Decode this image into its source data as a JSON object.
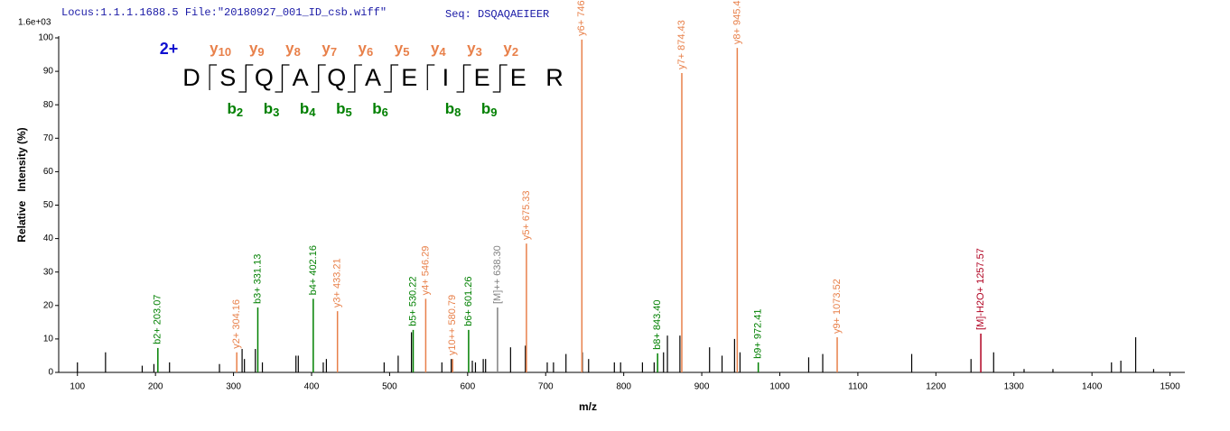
{
  "chart_data": {
    "type": "spectrum",
    "title": "Locus:1.1.1.1688.5 File:\"20180927_001_ID_csb.wiff\"",
    "subtitle": "Seq: DSQAQAEIEER",
    "y_scale_label": "1.6e+03",
    "x_label": "m/z",
    "y_label": "Relative   Intensity (%)",
    "xlim": [
      76,
      1519
    ],
    "ylim": [
      0,
      100
    ],
    "xticks": [
      100,
      200,
      300,
      400,
      500,
      600,
      700,
      800,
      900,
      1000,
      1100,
      1200,
      1300,
      1400,
      1500
    ],
    "yticks": [
      0,
      10,
      20,
      30,
      40,
      50,
      60,
      70,
      80,
      90,
      100
    ],
    "series": [
      {
        "color": "#000000",
        "x": [
          100,
          136,
          183,
          198,
          218,
          282,
          311,
          314,
          328,
          337,
          380,
          383,
          415,
          419,
          493,
          511,
          528,
          567,
          579,
          606,
          610,
          620,
          623,
          655,
          674,
          702,
          710,
          726,
          747,
          755,
          788,
          796,
          824,
          839,
          851,
          856,
          872,
          910,
          926,
          942,
          949,
          1037,
          1055,
          1169,
          1245,
          1274,
          1313,
          1350,
          1425,
          1437,
          1456,
          1479
        ],
        "values": [
          3,
          6,
          2,
          2.5,
          3,
          2.5,
          7,
          4,
          7,
          3,
          5,
          5,
          3,
          4,
          3,
          5,
          12,
          3,
          4,
          3.5,
          3,
          4,
          4,
          7.5,
          8,
          3,
          3,
          5.5,
          6,
          4,
          3,
          3,
          3,
          3,
          6,
          11,
          11,
          7.5,
          5,
          10,
          6,
          4.5,
          5.5,
          5.5,
          4,
          6,
          1,
          1,
          3,
          3.5,
          10.5,
          1
        ]
      }
    ],
    "annotations": [
      {
        "label": "b2+ 203.07",
        "x": 203.07,
        "value": 7.3,
        "color": "#008000"
      },
      {
        "label": "y2+ 304.16",
        "x": 304.16,
        "value": 6,
        "color": "#e8804a"
      },
      {
        "label": "b3+ 331.13",
        "x": 331.13,
        "value": 19.4,
        "color": "#008000"
      },
      {
        "label": "b4+ 402.16",
        "x": 402.16,
        "value": 22,
        "color": "#008000"
      },
      {
        "label": "y3+ 433.21",
        "x": 433.21,
        "value": 18.3,
        "color": "#e8804a"
      },
      {
        "label": "b5+ 530.22",
        "x": 530.22,
        "value": 12.7,
        "color": "#008000"
      },
      {
        "label": "y4+ 546.29",
        "x": 546.29,
        "value": 22,
        "color": "#e8804a"
      },
      {
        "label": "y10++ 580.79",
        "x": 580.79,
        "value": 4,
        "color": "#e8804a"
      },
      {
        "label": "b6+ 601.26",
        "x": 601.26,
        "value": 12.7,
        "color": "#008000"
      },
      {
        "label": "[M]++ 638.30",
        "x": 638.3,
        "value": 19.4,
        "color": "#808080"
      },
      {
        "label": "y5+ 675.33",
        "x": 675.33,
        "value": 38.5,
        "color": "#e8804a"
      },
      {
        "label": "y6+ 746.37",
        "x": 746.37,
        "value": 99.5,
        "color": "#e8804a"
      },
      {
        "label": "b8+ 843.40",
        "x": 843.4,
        "value": 5.7,
        "color": "#008000"
      },
      {
        "label": "y7+ 874.43",
        "x": 874.43,
        "value": 89.5,
        "color": "#e8804a"
      },
      {
        "label": "y8+ 945.47",
        "x": 945.47,
        "value": 97,
        "color": "#e8804a"
      },
      {
        "label": "b9+ 972.41",
        "x": 972.41,
        "value": 3,
        "color": "#008000"
      },
      {
        "label": "y9+ 1073.52",
        "x": 1073.52,
        "value": 10.5,
        "color": "#e8804a"
      },
      {
        "label": "[M]-H2O+ 1257.57",
        "x": 1257.57,
        "value": 11.6,
        "color": "#b00020"
      }
    ],
    "sequence": {
      "charge": "2+",
      "charge_color": "#1010d0",
      "residues": [
        "D",
        "S",
        "Q",
        "A",
        "Q",
        "A",
        "E",
        "I",
        "E",
        "E",
        "R"
      ],
      "y_color": "#e8804a",
      "b_color": "#008000",
      "y_ions": [
        {
          "letter": "y",
          "number": "10"
        },
        {
          "letter": "y",
          "number": "9"
        },
        {
          "letter": "y",
          "number": "8"
        },
        {
          "letter": "y",
          "number": "7"
        },
        {
          "letter": "y",
          "number": "6"
        },
        {
          "letter": "y",
          "number": "5"
        },
        {
          "letter": "y",
          "number": "4"
        },
        {
          "letter": "y",
          "number": "3"
        },
        {
          "letter": "y",
          "number": "2"
        }
      ],
      "b_ions": [
        {
          "letter": "b",
          "number": "2"
        },
        {
          "letter": "b",
          "number": "3"
        },
        {
          "letter": "b",
          "number": "4"
        },
        {
          "letter": "b",
          "number": "5"
        },
        {
          "letter": "b",
          "number": "6"
        },
        {
          "letter": "b",
          "number": "8"
        },
        {
          "letter": "b",
          "number": "9"
        }
      ]
    }
  }
}
